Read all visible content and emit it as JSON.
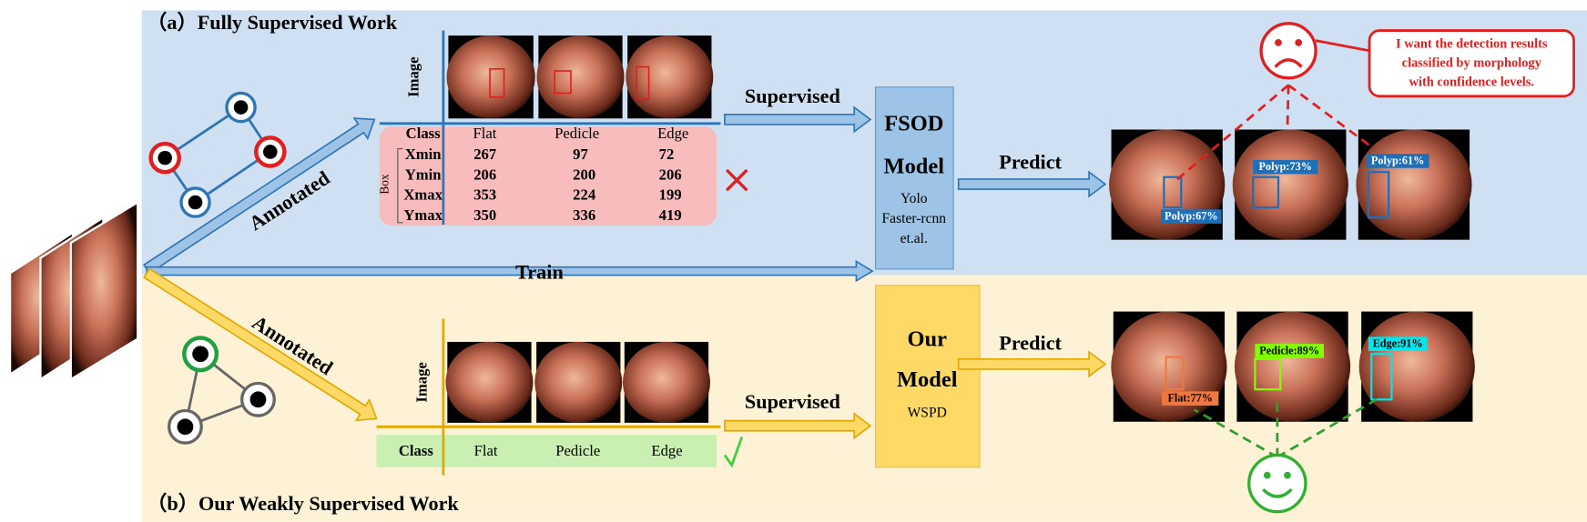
{
  "top": {
    "title": "（a）Fully Supervised Work",
    "annotated": "Annotated",
    "image_label": "Image",
    "table": {
      "header": [
        "Class",
        "Flat",
        "Pedicle",
        "Edge"
      ],
      "box_label": "Box",
      "rows": [
        [
          "Xmin",
          267,
          97,
          72
        ],
        [
          "Ymin",
          206,
          200,
          206
        ],
        [
          "Xmax",
          353,
          224,
          199
        ],
        [
          "Ymax",
          350,
          336,
          419
        ]
      ]
    },
    "supervised": "Supervised",
    "model": {
      "name": [
        "FSOD",
        "Model"
      ],
      "methods": [
        "Yolo",
        "Faster-rcnn",
        "et.al."
      ]
    },
    "predict": "Predict",
    "detections": [
      "Polyp:67%",
      "Polyp:73%",
      "Polyp:61%"
    ],
    "callout": [
      "I want the detection results",
      "classified by morphology",
      "with confidence levels."
    ]
  },
  "train": "Train",
  "bottom": {
    "title": "（b）Our Weakly Supervised Work",
    "annotated": "Annotated",
    "image_label": "Image",
    "table": {
      "row": [
        "Class",
        "Flat",
        "Pedicle",
        "Edge"
      ]
    },
    "supervised": "Supervised",
    "model": {
      "name": [
        "Our",
        "Model"
      ],
      "method": "WSPD"
    },
    "predict": "Predict",
    "detections": [
      "Flat:77%",
      "Pedicle:89%",
      "Edge:91%"
    ]
  }
}
